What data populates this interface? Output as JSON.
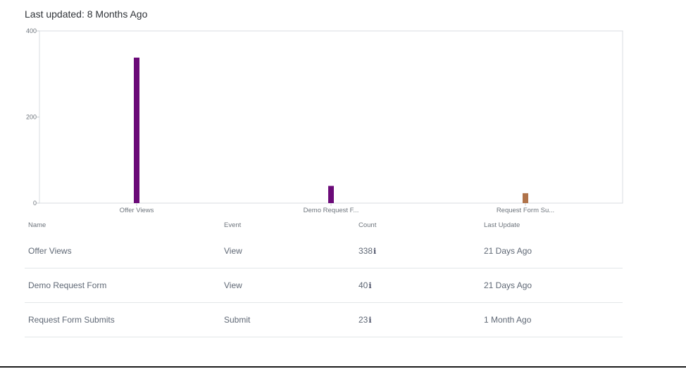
{
  "header": {
    "last_updated": "Last updated: 8 Months Ago"
  },
  "chart_data": {
    "type": "bar",
    "categories": [
      "Offer Views",
      "Demo Request F...",
      "Request Form Su..."
    ],
    "values": [
      338,
      40,
      23
    ],
    "colors": [
      "#6b0a78",
      "#6b0a78",
      "#b0734a"
    ],
    "yticks": [
      "0",
      "200",
      "400"
    ],
    "ylim": [
      0,
      400
    ],
    "grid": false
  },
  "table": {
    "headers": {
      "name": "Name",
      "event": "Event",
      "count": "Count",
      "last_update": "Last Update"
    },
    "rows": [
      {
        "name": "Offer Views",
        "event": "View",
        "count": "338",
        "last_update": "21 Days Ago"
      },
      {
        "name": "Demo Request Form",
        "event": "View",
        "count": "40",
        "last_update": "21 Days Ago"
      },
      {
        "name": "Request Form Submits",
        "event": "Submit",
        "count": "23",
        "last_update": "1 Month Ago"
      }
    ],
    "info_icon": "info-icon"
  }
}
